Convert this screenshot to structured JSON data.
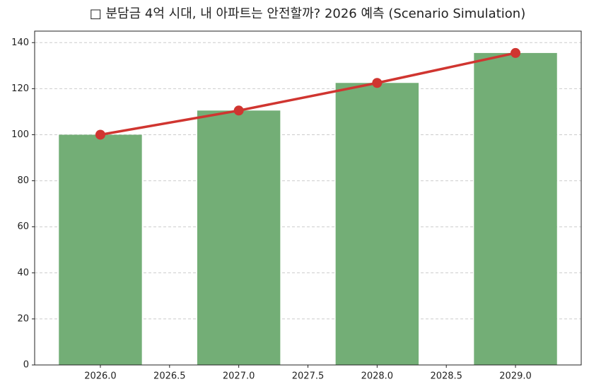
{
  "chart_data": {
    "type": "bar",
    "title": "□ 분담금 4억 시대, 내 아파트는 안전할까? 2026 예측 (Scenario Simulation)",
    "x": [
      2026,
      2027,
      2028,
      2029
    ],
    "series": [
      {
        "type": "bar",
        "color": "#73ae76",
        "values": [
          100,
          110.5,
          122.5,
          135.5
        ]
      },
      {
        "type": "line",
        "color": "#d03530",
        "values": [
          100,
          110.5,
          122.5,
          135.5
        ]
      }
    ],
    "bar_width": 0.6,
    "xlim": [
      2025.525,
      2029.475
    ],
    "xticks": [
      {
        "value": 2026,
        "label": "2026.0"
      },
      {
        "value": 2026.5,
        "label": "2026.5"
      },
      {
        "value": 2027,
        "label": "2027.0"
      },
      {
        "value": 2027.5,
        "label": "2027.5"
      },
      {
        "value": 2028,
        "label": "2028.0"
      },
      {
        "value": 2028.5,
        "label": "2028.5"
      },
      {
        "value": 2029,
        "label": "2029.0"
      }
    ],
    "ylim": [
      0,
      145
    ],
    "yticks": [
      0,
      20,
      40,
      60,
      80,
      100,
      120,
      140
    ],
    "grid": true
  }
}
